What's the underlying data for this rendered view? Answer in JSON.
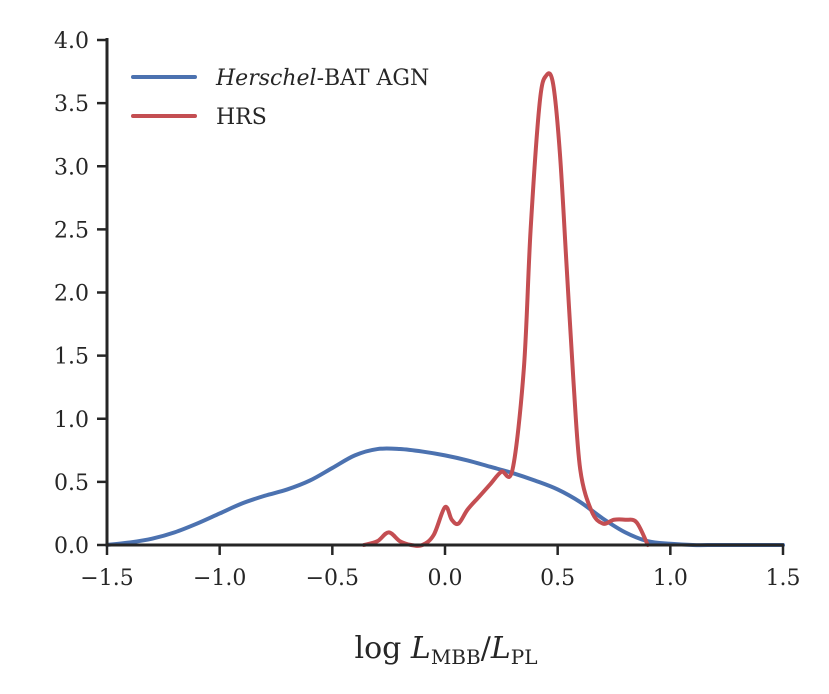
{
  "chart_data": {
    "type": "line",
    "xlim": [
      -1.5,
      1.5
    ],
    "ylim": [
      0.0,
      4.0
    ],
    "xticks": [
      "−1.5",
      "−1.0",
      "−0.5",
      "0.0",
      "0.5",
      "1.0",
      "1.5"
    ],
    "xtick_values": [
      -1.5,
      -1.0,
      -0.5,
      0.0,
      0.5,
      1.0,
      1.5
    ],
    "yticks": [
      "0.0",
      "0.5",
      "1.0",
      "1.5",
      "2.0",
      "2.5",
      "3.0",
      "3.5",
      "4.0"
    ],
    "ytick_values": [
      0.0,
      0.5,
      1.0,
      1.5,
      2.0,
      2.5,
      3.0,
      3.5,
      4.0
    ],
    "xlabel": {
      "prefix": "log ",
      "var1": "L",
      "sub1": "MBB",
      "sep": "/",
      "var2": "L",
      "sub2": "PL"
    },
    "ylabel": "",
    "grid": false,
    "legend_position": "top-left",
    "series": [
      {
        "name": "Herschel-BAT AGN",
        "name_italic": "Herschel",
        "name_rest": "-BAT AGN",
        "color": "#4c72b0",
        "x": [
          -1.5,
          -1.4,
          -1.3,
          -1.2,
          -1.1,
          -1.0,
          -0.9,
          -0.8,
          -0.7,
          -0.6,
          -0.5,
          -0.4,
          -0.3,
          -0.2,
          -0.1,
          0.0,
          0.1,
          0.2,
          0.3,
          0.4,
          0.5,
          0.6,
          0.7,
          0.8,
          0.9,
          1.0,
          1.1,
          1.2,
          1.3,
          1.4,
          1.5
        ],
        "y": [
          0.0,
          0.02,
          0.05,
          0.1,
          0.17,
          0.25,
          0.33,
          0.39,
          0.44,
          0.51,
          0.61,
          0.71,
          0.76,
          0.76,
          0.74,
          0.71,
          0.67,
          0.62,
          0.57,
          0.51,
          0.44,
          0.34,
          0.21,
          0.1,
          0.03,
          0.01,
          0.0,
          0.0,
          0.0,
          0.0,
          0.0
        ]
      },
      {
        "name": "HRS",
        "color": "#c44e52",
        "x": [
          -0.36,
          -0.3,
          -0.25,
          -0.2,
          -0.15,
          -0.1,
          -0.05,
          0.0,
          0.03,
          0.06,
          0.1,
          0.15,
          0.2,
          0.25,
          0.3,
          0.35,
          0.38,
          0.42,
          0.45,
          0.48,
          0.51,
          0.54,
          0.57,
          0.6,
          0.65,
          0.7,
          0.75,
          0.8,
          0.85,
          0.9
        ],
        "y": [
          0.0,
          0.03,
          0.1,
          0.03,
          0.0,
          0.0,
          0.08,
          0.3,
          0.2,
          0.17,
          0.28,
          0.38,
          0.48,
          0.58,
          0.6,
          1.4,
          2.5,
          3.5,
          3.72,
          3.65,
          3.1,
          2.2,
          1.3,
          0.6,
          0.27,
          0.17,
          0.2,
          0.2,
          0.18,
          0.0
        ]
      }
    ]
  }
}
